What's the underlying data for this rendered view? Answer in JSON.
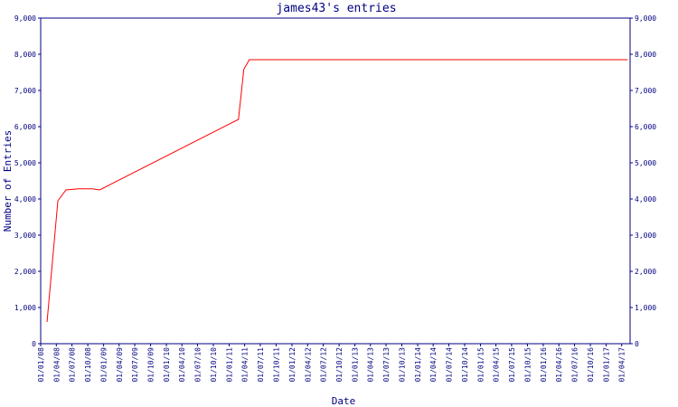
{
  "chart_data": {
    "type": "line",
    "title": "james43's entries",
    "x_label": "Date",
    "y_label": "Number of Entries",
    "x": [
      "2008-02-07",
      "2008-04-10",
      "2008-05-27",
      "2008-08-09",
      "2008-10-27",
      "2008-12-09",
      "2011-02-24",
      "2011-03-27",
      "2011-04-28",
      "2017-05-06"
    ],
    "series": [
      {
        "name": "entries",
        "color": "#ff0000",
        "values": [
          600,
          3950,
          4250,
          4280,
          4280,
          4250,
          6200,
          7580,
          7850,
          7850
        ]
      }
    ],
    "xlim": [
      "2008-01-01",
      "2017-05-20"
    ],
    "xticks": [
      {
        "value": "2008-01-01",
        "label": "01/01/08"
      },
      {
        "value": "2008-04-01",
        "label": "01/04/08"
      },
      {
        "value": "2008-07-01",
        "label": "01/07/08"
      },
      {
        "value": "2008-10-01",
        "label": "01/10/08"
      },
      {
        "value": "2009-01-01",
        "label": "01/01/09"
      },
      {
        "value": "2009-04-01",
        "label": "01/04/09"
      },
      {
        "value": "2009-07-01",
        "label": "01/07/09"
      },
      {
        "value": "2009-10-01",
        "label": "01/10/09"
      },
      {
        "value": "2010-01-01",
        "label": "01/01/10"
      },
      {
        "value": "2010-04-01",
        "label": "01/04/10"
      },
      {
        "value": "2010-07-01",
        "label": "01/07/10"
      },
      {
        "value": "2010-10-01",
        "label": "01/10/10"
      },
      {
        "value": "2011-01-01",
        "label": "01/01/11"
      },
      {
        "value": "2011-04-01",
        "label": "01/04/11"
      },
      {
        "value": "2011-07-01",
        "label": "01/07/11"
      },
      {
        "value": "2011-10-01",
        "label": "01/10/11"
      },
      {
        "value": "2012-01-01",
        "label": "01/01/12"
      },
      {
        "value": "2012-04-01",
        "label": "01/04/12"
      },
      {
        "value": "2012-07-01",
        "label": "01/07/12"
      },
      {
        "value": "2012-10-01",
        "label": "01/10/12"
      },
      {
        "value": "2013-01-01",
        "label": "01/01/13"
      },
      {
        "value": "2013-04-01",
        "label": "01/04/13"
      },
      {
        "value": "2013-07-01",
        "label": "01/07/13"
      },
      {
        "value": "2013-10-01",
        "label": "01/10/13"
      },
      {
        "value": "2014-01-01",
        "label": "01/01/14"
      },
      {
        "value": "2014-04-01",
        "label": "01/04/14"
      },
      {
        "value": "2014-07-01",
        "label": "01/07/14"
      },
      {
        "value": "2014-10-01",
        "label": "01/10/14"
      },
      {
        "value": "2015-01-01",
        "label": "01/01/15"
      },
      {
        "value": "2015-04-01",
        "label": "01/04/15"
      },
      {
        "value": "2015-07-01",
        "label": "01/07/15"
      },
      {
        "value": "2015-10-01",
        "label": "01/10/15"
      },
      {
        "value": "2016-01-01",
        "label": "01/01/16"
      },
      {
        "value": "2016-04-01",
        "label": "01/04/16"
      },
      {
        "value": "2016-07-01",
        "label": "01/07/16"
      },
      {
        "value": "2016-10-01",
        "label": "01/10/16"
      },
      {
        "value": "2017-01-01",
        "label": "01/01/17"
      },
      {
        "value": "2017-04-01",
        "label": "01/04/17"
      }
    ],
    "ylim": [
      0,
      9000
    ],
    "yticks": [
      0,
      {
        "value": 1000,
        "label": "1,000"
      },
      {
        "value": 2000,
        "label": "2,000"
      },
      {
        "value": 3000,
        "label": "3,000"
      },
      {
        "value": 4000,
        "label": "4,000"
      },
      {
        "value": 5000,
        "label": "5,000"
      },
      {
        "value": 6000,
        "label": "6,000"
      },
      {
        "value": 7000,
        "label": "7,000"
      },
      {
        "value": 8000,
        "label": "8,000"
      },
      {
        "value": 9000,
        "label": "9,000"
      }
    ],
    "axis_color": "#000080",
    "grid": false
  }
}
